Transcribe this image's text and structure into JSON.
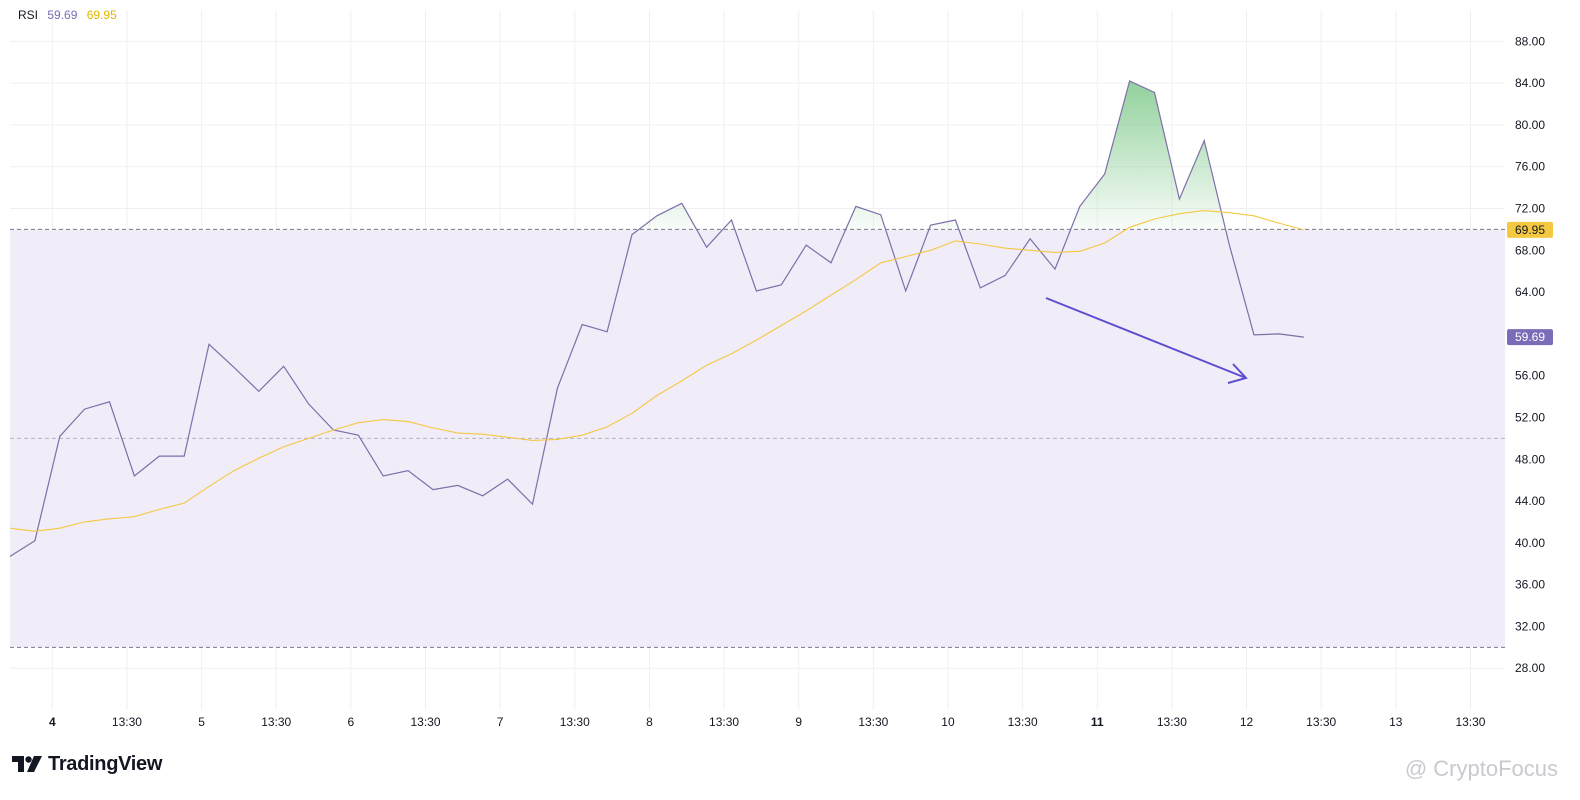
{
  "legend": {
    "name": "RSI",
    "rsi_value": "59.69",
    "ma_value": "69.95"
  },
  "brand": {
    "name": "TradingView"
  },
  "watermark": {
    "text": "@ CryptoFocus"
  },
  "colors": {
    "rsi_line": "#7e6fa8",
    "ma_line": "#f5c842",
    "band_fill": "#f0ecf8",
    "overbought_fill": "#7ec98a",
    "rsi_tag": "#7b6bb8",
    "ma_tag": "#f5c842",
    "arrow": "#5b4fcf",
    "grid": "#f0f0f3",
    "band_line": "#787b86"
  },
  "chart_data": {
    "type": "line",
    "title": "",
    "ylim": [
      24.0,
      91.0
    ],
    "band": {
      "upper": 70,
      "middle": 50,
      "lower": 30
    },
    "y_ticks": [
      "28.00",
      "32.00",
      "36.00",
      "40.00",
      "44.00",
      "48.00",
      "52.00",
      "56.00",
      "60.00",
      "64.00",
      "68.00",
      "72.00",
      "76.00",
      "80.00",
      "84.00",
      "88.00"
    ],
    "y_tick_values": [
      28,
      32,
      36,
      40,
      44,
      48,
      52,
      56,
      60,
      64,
      68,
      72,
      76,
      80,
      84,
      88
    ],
    "x_ticks": [
      {
        "label": "4",
        "i": 1.7,
        "bold": true
      },
      {
        "label": "13:30",
        "i": 4.7
      },
      {
        "label": "5",
        "i": 7.7
      },
      {
        "label": "13:30",
        "i": 10.7
      },
      {
        "label": "6",
        "i": 13.7
      },
      {
        "label": "13:30",
        "i": 16.7
      },
      {
        "label": "7",
        "i": 19.7
      },
      {
        "label": "13:30",
        "i": 22.7
      },
      {
        "label": "8",
        "i": 25.7
      },
      {
        "label": "13:30",
        "i": 28.7
      },
      {
        "label": "9",
        "i": 31.7
      },
      {
        "label": "13:30",
        "i": 34.7
      },
      {
        "label": "10",
        "i": 37.7
      },
      {
        "label": "13:30",
        "i": 40.7
      },
      {
        "label": "11",
        "i": 43.7,
        "bold": true
      },
      {
        "label": "13:30",
        "i": 46.7
      },
      {
        "label": "12",
        "i": 49.7
      },
      {
        "label": "13:30",
        "i": 52.7
      },
      {
        "label": "13",
        "i": 55.7
      },
      {
        "label": "13:30",
        "i": 58.7
      }
    ],
    "series": [
      {
        "name": "RSI",
        "values": [
          38.7,
          40.2,
          50.2,
          52.8,
          53.5,
          46.4,
          48.3,
          48.3,
          59.0,
          56.8,
          54.5,
          56.9,
          53.3,
          50.8,
          50.3,
          46.4,
          46.9,
          45.1,
          45.5,
          44.5,
          46.1,
          43.7,
          54.8,
          60.9,
          60.2,
          69.5,
          71.3,
          72.5,
          68.3,
          70.9,
          64.1,
          64.7,
          68.5,
          66.8,
          72.2,
          71.4,
          64.1,
          70.4,
          70.9,
          64.4,
          65.6,
          69.1,
          66.2,
          72.2,
          75.3,
          84.2,
          83.1,
          72.9,
          78.5,
          68.6,
          59.9,
          60.0,
          59.69
        ]
      },
      {
        "name": "RSI MA",
        "values": [
          41.4,
          41.1,
          41.4,
          42.0,
          42.3,
          42.5,
          43.2,
          43.8,
          45.4,
          46.9,
          48.1,
          49.2,
          50.0,
          50.8,
          51.5,
          51.8,
          51.6,
          51.0,
          50.5,
          50.4,
          50.1,
          49.8,
          49.9,
          50.3,
          51.1,
          52.4,
          54.1,
          55.5,
          57.0,
          58.1,
          59.4,
          60.8,
          62.2,
          63.7,
          65.2,
          66.8,
          67.4,
          68.0,
          68.9,
          68.6,
          68.2,
          68.0,
          67.8,
          67.9,
          68.7,
          70.2,
          71.0,
          71.5,
          71.8,
          71.6,
          71.3,
          70.6,
          69.95
        ]
      }
    ]
  }
}
